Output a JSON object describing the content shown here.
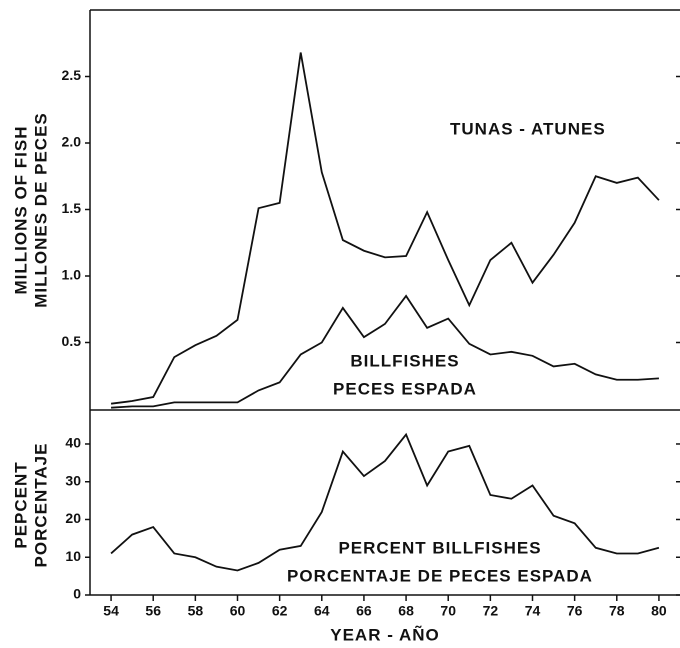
{
  "chart_data": [
    {
      "type": "line",
      "ylabel": [
        "MILLIONS OF FISH",
        "MILLONES DE PECES"
      ],
      "x": [
        54,
        55,
        56,
        57,
        58,
        59,
        60,
        61,
        62,
        63,
        64,
        65,
        66,
        67,
        68,
        69,
        70,
        71,
        72,
        73,
        74,
        75,
        76,
        77,
        78,
        79,
        80
      ],
      "series": [
        {
          "color": "#111111",
          "values": [
            0.04,
            0.06,
            0.09,
            0.39,
            0.48,
            0.55,
            0.67,
            1.51,
            1.55,
            2.68,
            1.78,
            1.27,
            1.19,
            1.14,
            1.15,
            1.48,
            1.12,
            0.78,
            1.12,
            1.25,
            0.95,
            1.16,
            1.4,
            1.75,
            1.7,
            1.74,
            1.57
          ]
        },
        {
          "color": "#111111",
          "values": [
            0.01,
            0.02,
            0.02,
            0.05,
            0.05,
            0.05,
            0.05,
            0.14,
            0.2,
            0.41,
            0.5,
            0.76,
            0.54,
            0.64,
            0.85,
            0.61,
            0.68,
            0.49,
            0.41,
            0.43,
            0.4,
            0.32,
            0.34,
            0.26,
            0.22,
            0.22,
            0.23
          ]
        }
      ],
      "annotations": [
        "TUNAS - ATUNES",
        "BILLFISHES",
        "PECES ESPADA"
      ],
      "xlim": [
        53,
        81
      ],
      "ylim": [
        0,
        3
      ],
      "yticks": [
        0.5,
        {
          "value": 1,
          "label": "1.0"
        },
        1.5,
        {
          "value": 2,
          "label": "2.0"
        },
        2.5
      ]
    },
    {
      "type": "line",
      "ylabel": [
        "PEPCENT",
        "PORCENTAJE"
      ],
      "xlabel": "YEAR - AÑO",
      "x": [
        54,
        55,
        56,
        57,
        58,
        59,
        60,
        61,
        62,
        63,
        64,
        65,
        66,
        67,
        68,
        69,
        70,
        71,
        72,
        73,
        74,
        75,
        76,
        77,
        78,
        79,
        80
      ],
      "series": [
        {
          "color": "#111111",
          "values": [
            11,
            16,
            18,
            11,
            10,
            7.5,
            6.5,
            8.5,
            12,
            13,
            22,
            38,
            31.5,
            35.5,
            42.5,
            29,
            38,
            39.5,
            26.5,
            25.5,
            29,
            21,
            19,
            12.5,
            11,
            11,
            12.5
          ]
        }
      ],
      "annotations": [
        "PERCENT BILLFISHES",
        "PORCENTAJE DE PECES ESPADA"
      ],
      "xlim": [
        53,
        81
      ],
      "xticks": [
        54,
        56,
        58,
        60,
        62,
        64,
        66,
        68,
        70,
        72,
        74,
        76,
        78,
        80
      ],
      "ylim": [
        0,
        49
      ],
      "yticks": [
        0,
        10,
        20,
        30,
        40
      ]
    }
  ]
}
